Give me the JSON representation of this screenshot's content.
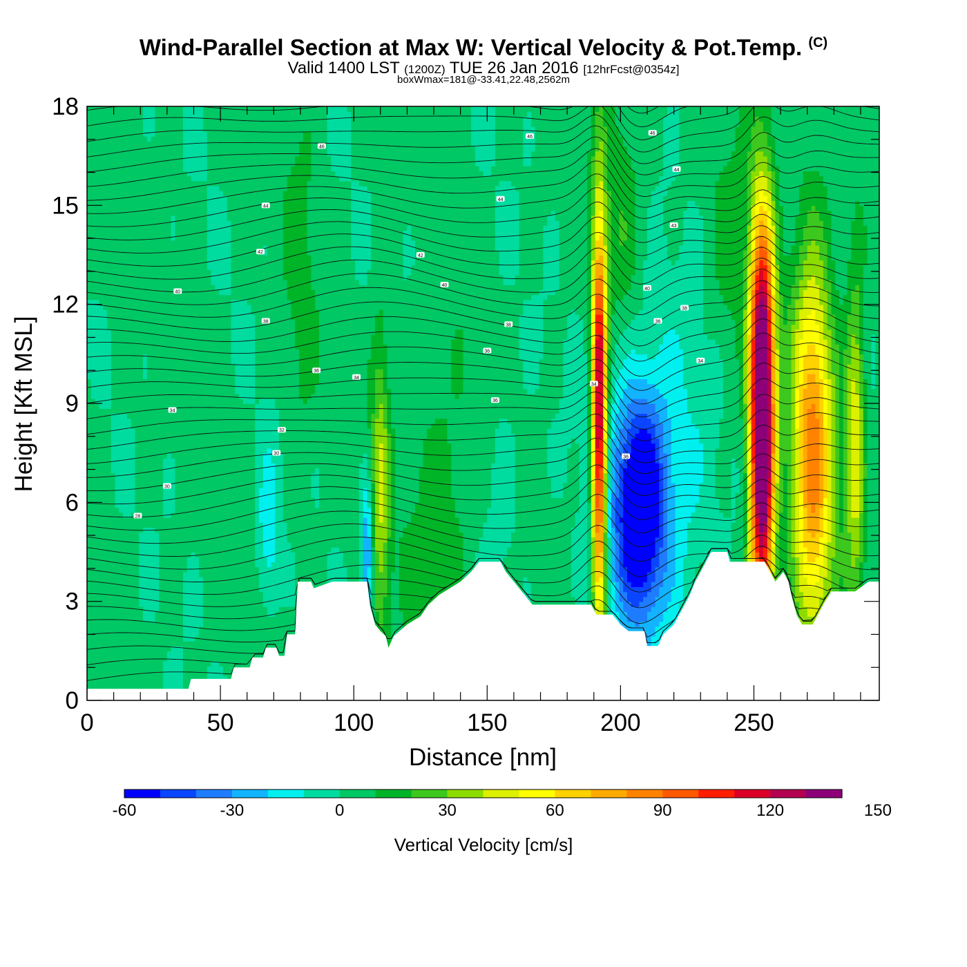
{
  "header": {
    "title": "Wind-Parallel Section at Max W: Vertical Velocity & Pot.Temp.",
    "copyright": "(C)",
    "valid_main": "Valid 1400 LST",
    "valid_utc": "(1200Z)",
    "valid_date": "TUE 26 Jan 2016",
    "forecast": "[12hrFcst@0354z]",
    "boxwmax": "boxWmax=181@-33.41,22.48,2562m"
  },
  "chart_data": {
    "type": "heatmap",
    "xlabel": "Distance [nm]",
    "ylabel": "Height [Kft MSL]",
    "xlim": [
      0,
      297
    ],
    "ylim": [
      0,
      18
    ],
    "xticks": [
      0,
      50,
      100,
      150,
      200,
      250
    ],
    "yticks": [
      0,
      3,
      6,
      9,
      12,
      15,
      18
    ],
    "terrain": [
      [
        0,
        0.35
      ],
      [
        38,
        0.35
      ],
      [
        39,
        0.65
      ],
      [
        54,
        0.65
      ],
      [
        55,
        1.0
      ],
      [
        61,
        1.0
      ],
      [
        62,
        1.3
      ],
      [
        66,
        1.3
      ],
      [
        67,
        1.6
      ],
      [
        71,
        1.6
      ],
      [
        72,
        1.35
      ],
      [
        74,
        1.35
      ],
      [
        75,
        2.0
      ],
      [
        78,
        2.0
      ],
      [
        79,
        3.6
      ],
      [
        84,
        3.6
      ],
      [
        85,
        3.4
      ],
      [
        92,
        3.6
      ],
      [
        105,
        3.6
      ],
      [
        106,
        2.9
      ],
      [
        108,
        2.3
      ],
      [
        110,
        2.1
      ],
      [
        112,
        1.95
      ],
      [
        113,
        1.6
      ],
      [
        115,
        1.95
      ],
      [
        120,
        2.3
      ],
      [
        125,
        2.55
      ],
      [
        128,
        2.9
      ],
      [
        132,
        3.2
      ],
      [
        136,
        3.4
      ],
      [
        140,
        3.6
      ],
      [
        144,
        3.9
      ],
      [
        147,
        4.2
      ],
      [
        155,
        4.2
      ],
      [
        157,
        3.9
      ],
      [
        160,
        3.6
      ],
      [
        164,
        3.2
      ],
      [
        167,
        2.9
      ],
      [
        189,
        2.9
      ],
      [
        191,
        2.6
      ],
      [
        197,
        2.6
      ],
      [
        200,
        2.3
      ],
      [
        203,
        2.1
      ],
      [
        209,
        2.1
      ],
      [
        210,
        1.65
      ],
      [
        214,
        1.65
      ],
      [
        216,
        2.0
      ],
      [
        220,
        2.3
      ],
      [
        222,
        2.6
      ],
      [
        224,
        2.9
      ],
      [
        226,
        3.2
      ],
      [
        228,
        3.6
      ],
      [
        230,
        3.9
      ],
      [
        232,
        4.2
      ],
      [
        234,
        4.5
      ],
      [
        240,
        4.5
      ],
      [
        241,
        4.2
      ],
      [
        254,
        4.2
      ],
      [
        256,
        3.9
      ],
      [
        258,
        3.6
      ],
      [
        261,
        3.9
      ],
      [
        263,
        3.6
      ],
      [
        264,
        3.2
      ],
      [
        266,
        2.6
      ],
      [
        268,
        2.3
      ],
      [
        272,
        2.3
      ],
      [
        274,
        2.6
      ],
      [
        276,
        2.9
      ],
      [
        279,
        3.3
      ],
      [
        288,
        3.3
      ],
      [
        293,
        3.6
      ],
      [
        297,
        3.6
      ]
    ],
    "updrafts": [
      {
        "x": 192,
        "z": 8.5,
        "sx": 1.9,
        "sz": 4.2,
        "w": 135
      },
      {
        "x": 253,
        "z": 8.8,
        "sx": 3.2,
        "sz": 4.6,
        "w": 181
      },
      {
        "x": 272,
        "z": 7.5,
        "sx": 5.5,
        "sz": 4.3,
        "w": 80
      },
      {
        "x": 288,
        "z": 8.0,
        "sx": 2.5,
        "sz": 3.5,
        "w": 45
      },
      {
        "x": 110,
        "z": 6.5,
        "sx": 2.5,
        "sz": 3.5,
        "w": 35
      },
      {
        "x": 132,
        "z": 5.5,
        "sx": 9.0,
        "sz": 3.0,
        "w": 15
      },
      {
        "x": 80,
        "z": 13.0,
        "sx": 4.0,
        "sz": 5.0,
        "w": 10
      },
      {
        "x": 200,
        "z": 15.0,
        "sx": 6.0,
        "sz": 3.0,
        "w": 15
      },
      {
        "x": 240,
        "z": 13.0,
        "sx": 5.0,
        "sz": 3.0,
        "w": 10
      }
    ],
    "downdrafts": [
      {
        "x": 207,
        "z": 5.8,
        "sx": 6.5,
        "sz": 2.3,
        "w": -60
      },
      {
        "x": 212,
        "z": 6.5,
        "sx": 14.0,
        "sz": 3.5,
        "w": -25
      },
      {
        "x": 105,
        "z": 4.5,
        "sx": 1.5,
        "sz": 1.5,
        "w": -40
      },
      {
        "x": 68,
        "z": 5.0,
        "sx": 3.0,
        "sz": 1.8,
        "w": -20
      },
      {
        "x": 253,
        "z": 14.5,
        "sx": 2.5,
        "sz": 2.5,
        "w": -20
      },
      {
        "x": 155,
        "z": 6.0,
        "sx": 6.0,
        "sz": 3.0,
        "w": -8
      }
    ],
    "contour_labels": [
      {
        "x": 88,
        "z": 16.8,
        "text": "46"
      },
      {
        "x": 166,
        "z": 17.1,
        "text": "46"
      },
      {
        "x": 212,
        "z": 17.2,
        "text": "46"
      },
      {
        "x": 221,
        "z": 16.1,
        "text": "44"
      },
      {
        "x": 67,
        "z": 15.0,
        "text": "44"
      },
      {
        "x": 155,
        "z": 15.2,
        "text": "44"
      },
      {
        "x": 220,
        "z": 14.4,
        "text": "43"
      },
      {
        "x": 65,
        "z": 13.6,
        "text": "42"
      },
      {
        "x": 125,
        "z": 13.5,
        "text": "42"
      },
      {
        "x": 34,
        "z": 12.4,
        "text": "40"
      },
      {
        "x": 134,
        "z": 12.6,
        "text": "40"
      },
      {
        "x": 210,
        "z": 12.5,
        "text": "40"
      },
      {
        "x": 224,
        "z": 11.9,
        "text": "38"
      },
      {
        "x": 67,
        "z": 11.5,
        "text": "38"
      },
      {
        "x": 158,
        "z": 11.4,
        "text": "38"
      },
      {
        "x": 214,
        "z": 11.5,
        "text": "36"
      },
      {
        "x": 150,
        "z": 10.6,
        "text": "36"
      },
      {
        "x": 230,
        "z": 10.3,
        "text": "34"
      },
      {
        "x": 86,
        "z": 10.0,
        "text": "36"
      },
      {
        "x": 101,
        "z": 9.8,
        "text": "34"
      },
      {
        "x": 153,
        "z": 9.1,
        "text": "36"
      },
      {
        "x": 190,
        "z": 9.6,
        "text": "34"
      },
      {
        "x": 32,
        "z": 8.8,
        "text": "34"
      },
      {
        "x": 73,
        "z": 8.2,
        "text": "32"
      },
      {
        "x": 71,
        "z": 7.5,
        "text": "30"
      },
      {
        "x": 202,
        "z": 7.4,
        "text": "36"
      },
      {
        "x": 30,
        "z": 6.5,
        "text": "30"
      },
      {
        "x": 19,
        "z": 5.6,
        "text": "28"
      }
    ]
  },
  "colorbar": {
    "label": "Vertical Velocity [cm/s]",
    "min": -60,
    "step": 10,
    "tick_labels": [
      "-60",
      "-30",
      "0",
      "30",
      "60",
      "90",
      "120",
      "150"
    ],
    "tick_values": [
      -60,
      -30,
      0,
      30,
      60,
      90,
      120,
      150
    ],
    "colors": [
      "#0000ff",
      "#0a46ff",
      "#1e7dff",
      "#12b4ff",
      "#00f0f0",
      "#00dca0",
      "#00c864",
      "#00b428",
      "#3cc81e",
      "#8cdc00",
      "#dcf000",
      "#ffff00",
      "#ffd200",
      "#ffaa00",
      "#ff8200",
      "#ff5a00",
      "#ff1e00",
      "#dc0028",
      "#b40050",
      "#8c0078"
    ]
  }
}
